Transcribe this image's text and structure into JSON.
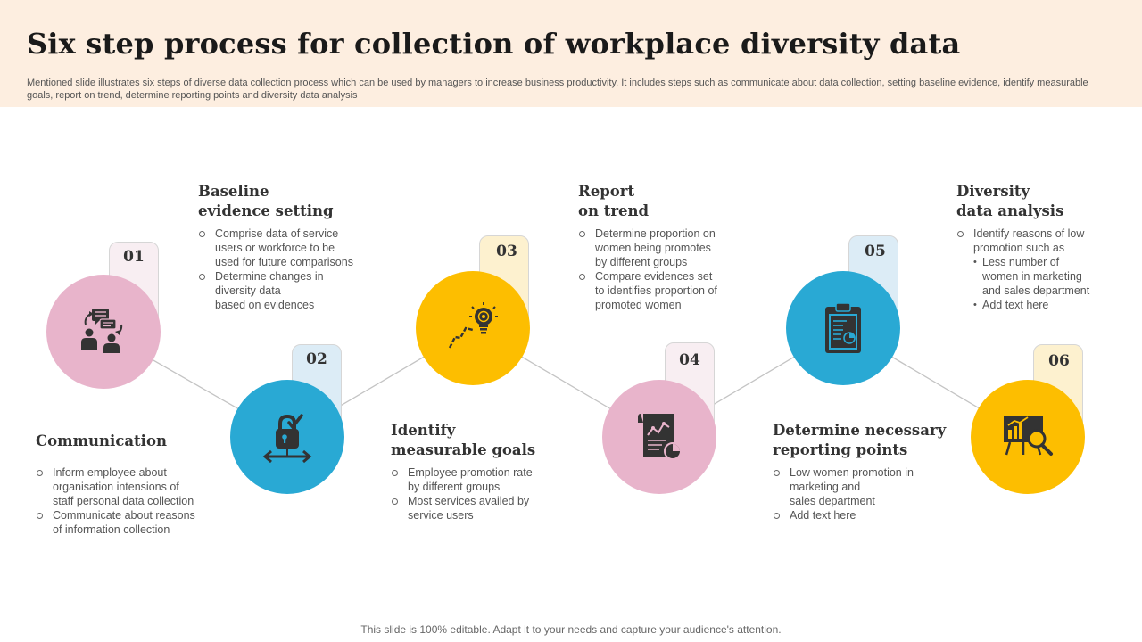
{
  "title": "Six step process for collection of workplace diversity data",
  "subtitle": "Mentioned slide illustrates six steps of diverse data collection process which can be used by managers to increase business productivity. It includes steps such as communicate about data collection, setting baseline evidence, identify measurable goals, report on trend, determine reporting points and diversity data analysis",
  "colors": {
    "pink": "#e8b4cb",
    "blue": "#29a9d4",
    "yellow": "#fdbe00",
    "header_bg": "#fdeee0"
  },
  "steps": [
    {
      "number": "01",
      "title_lines": [
        "Communication"
      ],
      "icon": "people-chat-icon",
      "bullets": [
        {
          "lines": [
            "Inform employee about",
            "organisation intensions of",
            "staff personal data collection"
          ]
        },
        {
          "lines": [
            "Communicate about reasons",
            "of information collection"
          ]
        }
      ]
    },
    {
      "number": "02",
      "title_lines": [
        "Baseline",
        "evidence setting"
      ],
      "icon": "lock-check-icon",
      "bullets": [
        {
          "lines": [
            "Comprise data of service",
            "users or workforce to be",
            "used for future comparisons"
          ]
        },
        {
          "lines": [
            "Determine changes in",
            "diversity data",
            "based on evidences"
          ]
        }
      ]
    },
    {
      "number": "03",
      "title_lines": [
        "Identify",
        "measurable goals"
      ],
      "icon": "bulb-growth-icon",
      "bullets": [
        {
          "lines": [
            "Employee promotion rate",
            "by different groups"
          ]
        },
        {
          "lines": [
            "Most services availed by",
            "service users"
          ]
        }
      ]
    },
    {
      "number": "04",
      "title_lines": [
        "Report",
        "on trend"
      ],
      "icon": "report-chart-icon",
      "bullets": [
        {
          "lines": [
            "Determine proportion on",
            "women being promotes",
            "by different groups"
          ]
        },
        {
          "lines": [
            "Compare evidences set",
            "to identifies proportion of",
            "promoted women"
          ]
        }
      ]
    },
    {
      "number": "05",
      "title_lines": [
        "Determine necessary",
        "reporting points"
      ],
      "icon": "clipboard-report-icon",
      "bullets": [
        {
          "lines": [
            "Low women promotion in",
            "marketing and",
            "sales department"
          ]
        },
        {
          "lines": [
            "Add text here"
          ]
        }
      ]
    },
    {
      "number": "06",
      "title_lines": [
        "Diversity",
        "data analysis"
      ],
      "icon": "presentation-analysis-icon",
      "bullets": [
        {
          "lines": [
            "Identify reasons of low",
            "promotion such as"
          ],
          "sub": [
            {
              "lines": [
                "Less number of",
                "women in marketing",
                "and sales department"
              ]
            },
            {
              "lines": [
                "Add text here"
              ]
            }
          ]
        }
      ]
    }
  ],
  "footer": "This slide is 100% editable. Adapt it to your needs and capture your audience's attention."
}
